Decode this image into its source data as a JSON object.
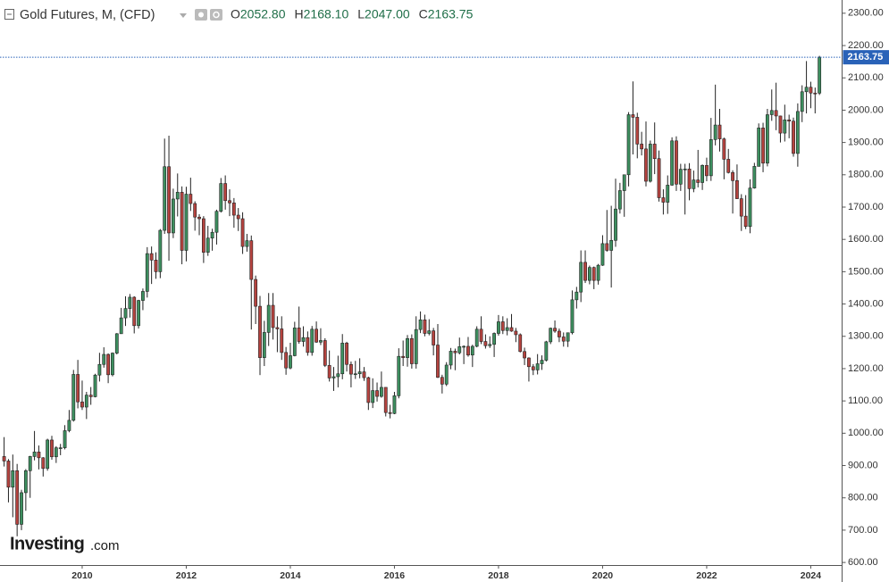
{
  "chart_data": {
    "type": "candlestick",
    "title": "Gold Futures, M, (CFD)",
    "readout": [
      {
        "key": "O",
        "label": "2052.80"
      },
      {
        "key": "H",
        "label": "2168.10"
      },
      {
        "key": "L",
        "label": "2047.00"
      },
      {
        "key": "C",
        "label": "2163.75"
      }
    ],
    "last_price_label": "2163.75",
    "watermark": [
      "Investing",
      ".com"
    ],
    "up_color": "#3d8f5f",
    "down_color": "#b5433f",
    "price_line_color": "#2962b8",
    "ylim": [
      592,
      2341
    ],
    "yticks": [
      {
        "value": 600,
        "label": "600.00"
      },
      {
        "value": 700,
        "label": "700.00"
      },
      {
        "value": 800,
        "label": "800.00"
      },
      {
        "value": 900,
        "label": "900.00"
      },
      {
        "value": 1000,
        "label": "1000.00"
      },
      {
        "value": 1100,
        "label": "1100.00"
      },
      {
        "value": 1200,
        "label": "1200.00"
      },
      {
        "value": 1300,
        "label": "1300.00"
      },
      {
        "value": 1400,
        "label": "1400.00"
      },
      {
        "value": 1500,
        "label": "1500.00"
      },
      {
        "value": 1600,
        "label": "1600.00"
      },
      {
        "value": 1700,
        "label": "1700.00"
      },
      {
        "value": 1800,
        "label": "1800.00"
      },
      {
        "value": 1900,
        "label": "1900.00"
      },
      {
        "value": 2000,
        "label": "2000.00"
      },
      {
        "value": 2100,
        "label": "2100.00"
      },
      {
        "value": 2200,
        "label": "2200.00"
      },
      {
        "value": 2300,
        "label": "2300.00"
      }
    ],
    "categories": [
      null,
      null,
      null,
      null,
      null,
      null,
      null,
      null,
      null,
      null,
      null,
      null,
      null,
      null,
      null,
      null,
      null,
      null,
      "2010",
      null,
      null,
      null,
      null,
      null,
      null,
      null,
      null,
      null,
      null,
      null,
      null,
      null,
      null,
      null,
      null,
      null,
      null,
      null,
      null,
      null,
      null,
      null,
      "2012",
      null,
      null,
      null,
      null,
      null,
      null,
      null,
      null,
      null,
      null,
      null,
      null,
      null,
      null,
      null,
      null,
      null,
      null,
      null,
      null,
      null,
      null,
      null,
      "2014",
      null,
      null,
      null,
      null,
      null,
      null,
      null,
      null,
      null,
      null,
      null,
      null,
      null,
      null,
      null,
      null,
      null,
      null,
      null,
      null,
      null,
      null,
      null,
      "2016",
      null,
      null,
      null,
      null,
      null,
      null,
      null,
      null,
      null,
      null,
      null,
      null,
      null,
      null,
      null,
      null,
      null,
      null,
      null,
      null,
      null,
      null,
      null,
      "2018",
      null,
      null,
      null,
      null,
      null,
      null,
      null,
      null,
      null,
      null,
      null,
      null,
      null,
      null,
      null,
      null,
      null,
      null,
      null,
      null,
      null,
      null,
      null,
      "2020",
      null,
      null,
      null,
      null,
      null,
      null,
      null,
      null,
      null,
      null,
      null,
      null,
      null,
      null,
      null,
      null,
      null,
      null,
      null,
      null,
      null,
      null,
      null,
      "2022",
      null,
      null,
      null,
      null,
      null,
      null,
      null,
      null,
      null,
      null,
      null,
      null,
      null,
      null,
      null,
      null,
      null,
      null,
      null,
      null,
      null,
      null,
      null,
      "2024",
      null,
      null
    ],
    "ohlc": [
      [
        928,
        988,
        897,
        914
      ],
      [
        914,
        920,
        786,
        833
      ],
      [
        833,
        934,
        740,
        884
      ],
      [
        884,
        905,
        681,
        718
      ],
      [
        718,
        825,
        700,
        816
      ],
      [
        816,
        889,
        760,
        884
      ],
      [
        884,
        930,
        800,
        928
      ],
      [
        928,
        1007,
        916,
        942
      ],
      [
        942,
        962,
        888,
        924
      ],
      [
        924,
        926,
        866,
        891
      ],
      [
        891,
        983,
        884,
        979
      ],
      [
        979,
        992,
        918,
        927
      ],
      [
        927,
        960,
        908,
        955
      ],
      [
        955,
        967,
        932,
        955
      ],
      [
        955,
        1025,
        950,
        1008
      ],
      [
        1008,
        1072,
        1003,
        1040
      ],
      [
        1040,
        1196,
        1036,
        1182
      ],
      [
        1182,
        1227,
        1077,
        1097
      ],
      [
        1097,
        1163,
        1072,
        1081
      ],
      [
        1081,
        1128,
        1044,
        1118
      ],
      [
        1118,
        1143,
        1088,
        1113
      ],
      [
        1113,
        1184,
        1111,
        1180
      ],
      [
        1180,
        1249,
        1160,
        1213
      ],
      [
        1213,
        1266,
        1203,
        1244
      ],
      [
        1244,
        1247,
        1155,
        1181
      ],
      [
        1181,
        1250,
        1176,
        1248
      ],
      [
        1248,
        1310,
        1244,
        1308
      ],
      [
        1308,
        1388,
        1308,
        1357
      ],
      [
        1357,
        1424,
        1332,
        1386
      ],
      [
        1386,
        1431,
        1358,
        1421
      ],
      [
        1421,
        1424,
        1309,
        1333
      ],
      [
        1333,
        1413,
        1324,
        1411
      ],
      [
        1411,
        1448,
        1381,
        1439
      ],
      [
        1439,
        1576,
        1420,
        1556
      ],
      [
        1556,
        1578,
        1462,
        1536
      ],
      [
        1536,
        1560,
        1478,
        1500
      ],
      [
        1500,
        1632,
        1480,
        1628
      ],
      [
        1628,
        1912,
        1617,
        1825
      ],
      [
        1825,
        1921,
        1534,
        1620
      ],
      [
        1620,
        1757,
        1604,
        1725
      ],
      [
        1725,
        1804,
        1671,
        1746
      ],
      [
        1746,
        1764,
        1523,
        1566
      ],
      [
        1566,
        1763,
        1532,
        1740
      ],
      [
        1740,
        1791,
        1688,
        1711
      ],
      [
        1711,
        1718,
        1627,
        1669
      ],
      [
        1669,
        1678,
        1613,
        1664
      ],
      [
        1664,
        1672,
        1527,
        1560
      ],
      [
        1560,
        1642,
        1549,
        1604
      ],
      [
        1604,
        1633,
        1565,
        1622
      ],
      [
        1622,
        1692,
        1584,
        1687
      ],
      [
        1687,
        1790,
        1683,
        1773
      ],
      [
        1773,
        1798,
        1692,
        1720
      ],
      [
        1720,
        1755,
        1672,
        1713
      ],
      [
        1713,
        1728,
        1636,
        1675
      ],
      [
        1675,
        1697,
        1626,
        1664
      ],
      [
        1664,
        1684,
        1555,
        1578
      ],
      [
        1578,
        1617,
        1562,
        1596
      ],
      [
        1596,
        1612,
        1321,
        1476
      ],
      [
        1476,
        1488,
        1338,
        1393
      ],
      [
        1393,
        1425,
        1180,
        1234
      ],
      [
        1234,
        1348,
        1208,
        1312
      ],
      [
        1312,
        1434,
        1270,
        1396
      ],
      [
        1396,
        1434,
        1290,
        1327
      ],
      [
        1327,
        1362,
        1251,
        1323
      ],
      [
        1323,
        1362,
        1227,
        1250
      ],
      [
        1250,
        1267,
        1181,
        1202
      ],
      [
        1202,
        1280,
        1198,
        1240
      ],
      [
        1240,
        1345,
        1238,
        1326
      ],
      [
        1326,
        1392,
        1277,
        1284
      ],
      [
        1284,
        1331,
        1268,
        1296
      ],
      [
        1296,
        1315,
        1240,
        1250
      ],
      [
        1250,
        1332,
        1240,
        1322
      ],
      [
        1322,
        1346,
        1280,
        1282
      ],
      [
        1282,
        1325,
        1273,
        1287
      ],
      [
        1287,
        1294,
        1205,
        1210
      ],
      [
        1210,
        1256,
        1160,
        1171
      ],
      [
        1171,
        1205,
        1131,
        1175
      ],
      [
        1175,
        1240,
        1142,
        1184
      ],
      [
        1184,
        1307,
        1167,
        1279
      ],
      [
        1279,
        1283,
        1191,
        1213
      ],
      [
        1213,
        1222,
        1142,
        1183
      ],
      [
        1183,
        1224,
        1168,
        1184
      ],
      [
        1184,
        1232,
        1170,
        1190
      ],
      [
        1190,
        1205,
        1162,
        1172
      ],
      [
        1172,
        1175,
        1072,
        1095
      ],
      [
        1095,
        1170,
        1078,
        1132
      ],
      [
        1132,
        1157,
        1098,
        1114
      ],
      [
        1114,
        1191,
        1110,
        1142
      ],
      [
        1142,
        1142,
        1052,
        1064
      ],
      [
        1064,
        1088,
        1046,
        1061
      ],
      [
        1061,
        1128,
        1059,
        1116
      ],
      [
        1116,
        1263,
        1108,
        1238
      ],
      [
        1238,
        1287,
        1208,
        1234
      ],
      [
        1234,
        1304,
        1206,
        1293
      ],
      [
        1293,
        1306,
        1200,
        1215
      ],
      [
        1215,
        1362,
        1200,
        1321
      ],
      [
        1321,
        1377,
        1310,
        1351
      ],
      [
        1351,
        1367,
        1300,
        1309
      ],
      [
        1309,
        1353,
        1303,
        1317
      ],
      [
        1317,
        1326,
        1241,
        1273
      ],
      [
        1273,
        1338,
        1171,
        1173
      ],
      [
        1173,
        1181,
        1123,
        1152
      ],
      [
        1152,
        1220,
        1146,
        1211
      ],
      [
        1211,
        1264,
        1198,
        1254
      ],
      [
        1254,
        1262,
        1195,
        1249
      ],
      [
        1249,
        1296,
        1244,
        1268
      ],
      [
        1268,
        1272,
        1214,
        1269
      ],
      [
        1269,
        1298,
        1237,
        1242
      ],
      [
        1242,
        1274,
        1205,
        1269
      ],
      [
        1269,
        1331,
        1266,
        1322
      ],
      [
        1322,
        1362,
        1276,
        1284
      ],
      [
        1284,
        1306,
        1262,
        1271
      ],
      [
        1271,
        1300,
        1264,
        1275
      ],
      [
        1275,
        1312,
        1236,
        1309
      ],
      [
        1309,
        1366,
        1302,
        1345
      ],
      [
        1345,
        1362,
        1307,
        1318
      ],
      [
        1318,
        1356,
        1303,
        1327
      ],
      [
        1327,
        1369,
        1314,
        1316
      ],
      [
        1316,
        1326,
        1282,
        1305
      ],
      [
        1305,
        1309,
        1250,
        1253
      ],
      [
        1253,
        1265,
        1211,
        1233
      ],
      [
        1233,
        1235,
        1160,
        1206
      ],
      [
        1206,
        1214,
        1180,
        1196
      ],
      [
        1196,
        1245,
        1182,
        1215
      ],
      [
        1215,
        1241,
        1196,
        1226
      ],
      [
        1226,
        1286,
        1222,
        1283
      ],
      [
        1283,
        1327,
        1276,
        1325
      ],
      [
        1325,
        1349,
        1311,
        1316
      ],
      [
        1316,
        1324,
        1282,
        1298
      ],
      [
        1298,
        1312,
        1268,
        1285
      ],
      [
        1285,
        1311,
        1267,
        1311
      ],
      [
        1311,
        1442,
        1306,
        1413
      ],
      [
        1413,
        1453,
        1386,
        1437
      ],
      [
        1437,
        1566,
        1406,
        1529
      ],
      [
        1529,
        1566,
        1465,
        1473
      ],
      [
        1473,
        1519,
        1461,
        1513
      ],
      [
        1513,
        1516,
        1446,
        1473
      ],
      [
        1473,
        1524,
        1460,
        1520
      ],
      [
        1520,
        1613,
        1518,
        1587
      ],
      [
        1587,
        1691,
        1562,
        1566
      ],
      [
        1566,
        1704,
        1451,
        1597
      ],
      [
        1597,
        1788,
        1577,
        1694
      ],
      [
        1694,
        1775,
        1680,
        1751
      ],
      [
        1751,
        1799,
        1670,
        1800
      ],
      [
        1800,
        1994,
        1764,
        1986
      ],
      [
        1986,
        2089,
        1863,
        1978
      ],
      [
        1978,
        1992,
        1851,
        1895
      ],
      [
        1895,
        1933,
        1860,
        1880
      ],
      [
        1880,
        1965,
        1764,
        1780
      ],
      [
        1780,
        1906,
        1776,
        1895
      ],
      [
        1895,
        1962,
        1802,
        1850
      ],
      [
        1850,
        1875,
        1717,
        1729
      ],
      [
        1729,
        1755,
        1677,
        1715
      ],
      [
        1715,
        1798,
        1679,
        1768
      ],
      [
        1768,
        1916,
        1766,
        1905
      ],
      [
        1905,
        1919,
        1750,
        1771
      ],
      [
        1771,
        1834,
        1750,
        1817
      ],
      [
        1817,
        1834,
        1677,
        1818
      ],
      [
        1818,
        1836,
        1721,
        1757
      ],
      [
        1757,
        1813,
        1746,
        1784
      ],
      [
        1784,
        1877,
        1761,
        1776
      ],
      [
        1776,
        1832,
        1753,
        1829
      ],
      [
        1829,
        1853,
        1780,
        1797
      ],
      [
        1797,
        1976,
        1781,
        1909
      ],
      [
        1909,
        2079,
        1891,
        1954
      ],
      [
        1954,
        2004,
        1872,
        1911
      ],
      [
        1911,
        1915,
        1786,
        1848
      ],
      [
        1848,
        1880,
        1804,
        1807
      ],
      [
        1807,
        1814,
        1680,
        1782
      ],
      [
        1782,
        1832,
        1725,
        1726
      ],
      [
        1726,
        1740,
        1626,
        1672
      ],
      [
        1672,
        1737,
        1632,
        1640
      ],
      [
        1640,
        1786,
        1619,
        1759
      ],
      [
        1759,
        1837,
        1757,
        1826
      ],
      [
        1826,
        1959,
        1826,
        1945
      ],
      [
        1945,
        1961,
        1808,
        1836
      ],
      [
        1836,
        2004,
        1826,
        1986
      ],
      [
        1986,
        2064,
        1967,
        1999
      ],
      [
        1999,
        2085,
        1938,
        1982
      ],
      [
        1982,
        1983,
        1900,
        1929
      ],
      [
        1929,
        2017,
        1903,
        1970
      ],
      [
        1970,
        1986,
        1913,
        1966
      ],
      [
        1966,
        1977,
        1856,
        1866
      ],
      [
        1866,
        2021,
        1825,
        1996
      ],
      [
        1996,
        2077,
        1963,
        2057
      ],
      [
        2057,
        2152,
        1990,
        2071
      ],
      [
        2071,
        2088,
        2006,
        2053
      ],
      [
        2053,
        2070,
        1990,
        2052.8
      ],
      [
        2052.8,
        2168.1,
        2047,
        2163.75
      ]
    ]
  }
}
